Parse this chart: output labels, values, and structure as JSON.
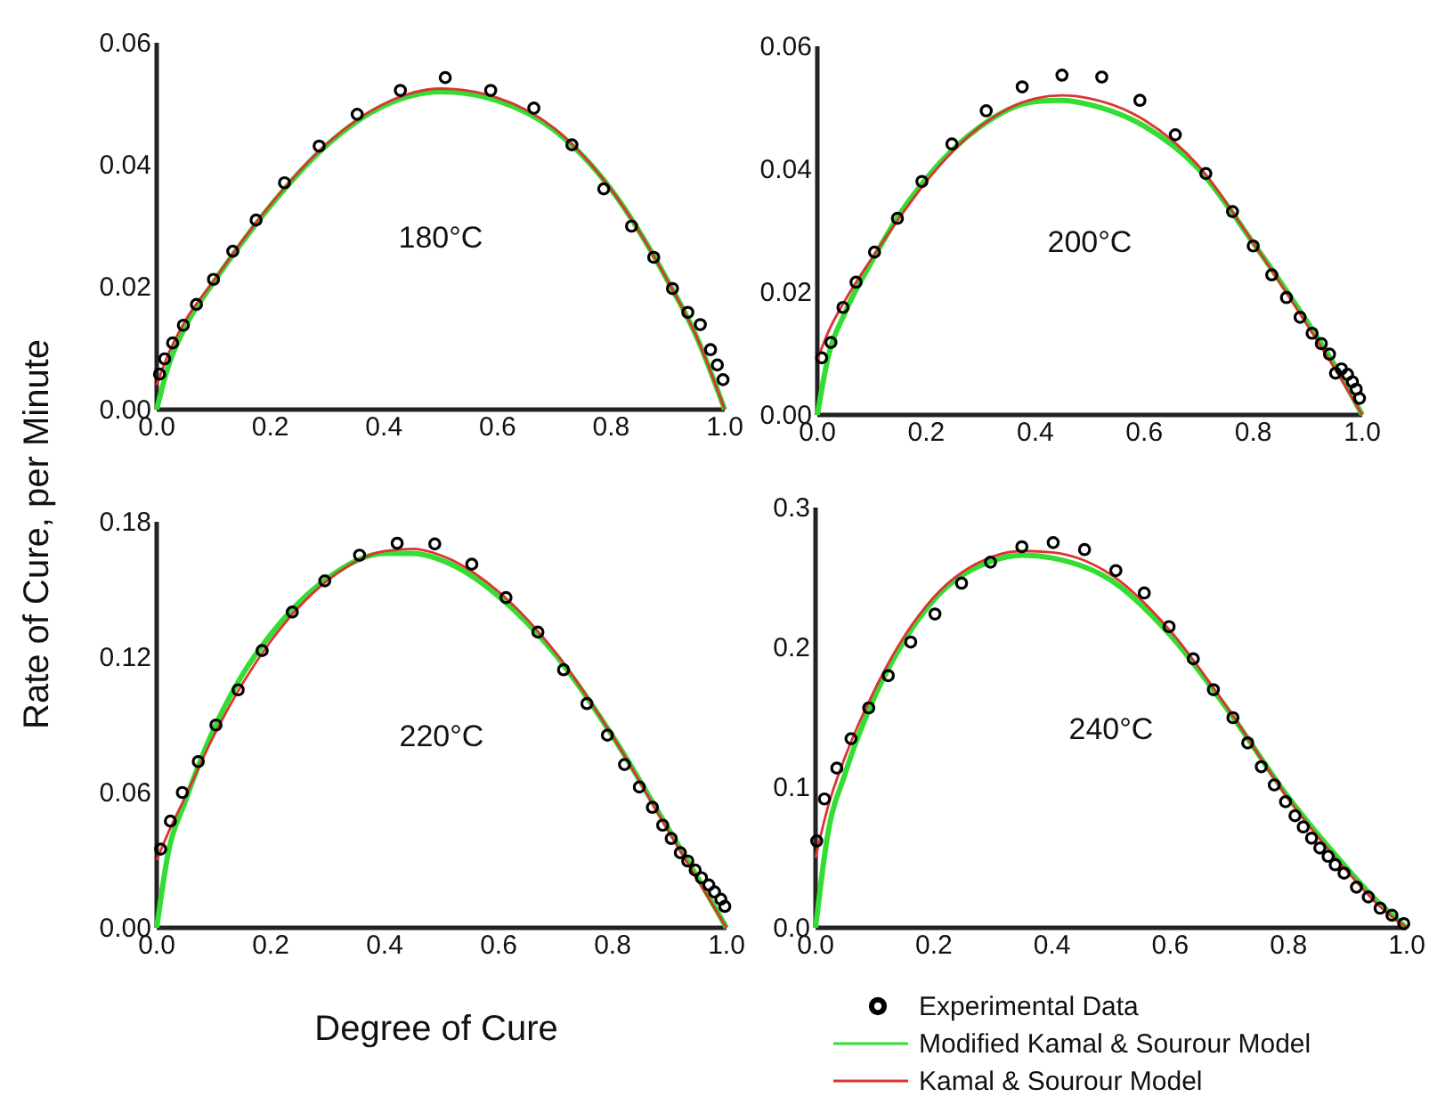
{
  "chart_data": [
    {
      "type": "scatter",
      "ylabel": "Rate of Cure, per Minute",
      "annotations": [
        "180°C"
      ],
      "xlim": [
        0,
        1
      ],
      "xticks": [
        {
          "value": 0,
          "label": "0.0"
        },
        {
          "value": 0.2,
          "label": "0.2"
        },
        {
          "value": 0.4,
          "label": "0.4"
        },
        {
          "value": 0.6,
          "label": "0.6"
        },
        {
          "value": 0.8,
          "label": "0.8"
        },
        {
          "value": 1,
          "label": "1.0"
        }
      ],
      "ylim": [
        0,
        0.06
      ],
      "yticks": [
        {
          "value": 0,
          "label": "0.00"
        },
        {
          "value": 0.02,
          "label": "0.02"
        },
        {
          "value": 0.04,
          "label": "0.04"
        },
        {
          "value": 0.06,
          "label": "0.06"
        }
      ],
      "grid": false,
      "series": [
        {
          "marker": "circle",
          "color": "#000000",
          "x": [
            0.005,
            0.014,
            0.028,
            0.047,
            0.07,
            0.1,
            0.134,
            0.175,
            0.225,
            0.286,
            0.353,
            0.429,
            0.508,
            0.588,
            0.664,
            0.731,
            0.787,
            0.836,
            0.875,
            0.908,
            0.935,
            0.957,
            0.975,
            0.987,
            0.997
          ],
          "values": [
            0.0058,
            0.0083,
            0.0109,
            0.0138,
            0.0172,
            0.0213,
            0.0259,
            0.031,
            0.0371,
            0.0431,
            0.0483,
            0.0522,
            0.0543,
            0.0522,
            0.0493,
            0.0433,
            0.0361,
            0.03,
            0.0249,
            0.0198,
            0.0159,
            0.0139,
            0.0098,
            0.0073,
            0.0049
          ]
        },
        {
          "type": "line",
          "marker": "none",
          "color": "#33dd33",
          "x": [
            0,
            0.02,
            0.05,
            0.1,
            0.15,
            0.2,
            0.3,
            0.4,
            0.5,
            0.6,
            0.7,
            0.8,
            0.9,
            0.95,
            1
          ],
          "values": [
            0,
            0.007,
            0.0135,
            0.0208,
            0.0273,
            0.0333,
            0.0433,
            0.0497,
            0.052,
            0.0505,
            0.0457,
            0.036,
            0.021,
            0.012,
            0
          ]
        },
        {
          "type": "line",
          "marker": "none",
          "color": "#dd3333",
          "x": [
            0,
            0.02,
            0.05,
            0.1,
            0.15,
            0.2,
            0.3,
            0.4,
            0.5,
            0.6,
            0.7,
            0.8,
            0.9,
            0.95,
            1
          ],
          "values": [
            0.004,
            0.009,
            0.0145,
            0.021,
            0.0275,
            0.0335,
            0.0435,
            0.05,
            0.0525,
            0.051,
            0.046,
            0.036,
            0.021,
            0.012,
            0
          ]
        }
      ]
    },
    {
      "type": "scatter",
      "annotations": [
        "200°C"
      ],
      "xlim": [
        0,
        1
      ],
      "xticks": [
        {
          "value": 0,
          "label": "0.0"
        },
        {
          "value": 0.2,
          "label": "0.2"
        },
        {
          "value": 0.4,
          "label": "0.4"
        },
        {
          "value": 0.6,
          "label": "0.6"
        },
        {
          "value": 0.8,
          "label": "0.8"
        },
        {
          "value": 1,
          "label": "1.0"
        }
      ],
      "ylim": [
        0,
        0.06
      ],
      "yticks": [
        {
          "value": 0,
          "label": "0.00"
        },
        {
          "value": 0.02,
          "label": "0.02"
        },
        {
          "value": 0.04,
          "label": "0.04"
        },
        {
          "value": 0.06,
          "label": "0.06"
        }
      ],
      "grid": false,
      "series": [
        {
          "marker": "circle",
          "color": "#000000",
          "x": [
            0.008,
            0.025,
            0.047,
            0.071,
            0.105,
            0.147,
            0.192,
            0.247,
            0.31,
            0.376,
            0.449,
            0.522,
            0.592,
            0.657,
            0.713,
            0.762,
            0.8,
            0.834,
            0.861,
            0.886,
            0.908,
            0.925,
            0.94,
            0.951,
            0.962,
            0.973,
            0.982,
            0.989,
            0.995
          ],
          "values": [
            0.0093,
            0.0118,
            0.0175,
            0.0216,
            0.0265,
            0.032,
            0.038,
            0.0441,
            0.0495,
            0.0534,
            0.0553,
            0.055,
            0.0512,
            0.0456,
            0.0393,
            0.0331,
            0.0275,
            0.0228,
            0.0191,
            0.0159,
            0.0133,
            0.0116,
            0.0099,
            0.0068,
            0.0075,
            0.0066,
            0.0054,
            0.0042,
            0.0027
          ]
        },
        {
          "type": "line",
          "marker": "none",
          "color": "#33dd33",
          "x": [
            0,
            0.02,
            0.05,
            0.1,
            0.15,
            0.2,
            0.3,
            0.4,
            0.45,
            0.5,
            0.6,
            0.7,
            0.8,
            0.9,
            0.95,
            1
          ],
          "values": [
            0,
            0.0095,
            0.0165,
            0.025,
            0.0325,
            0.0385,
            0.047,
            0.051,
            0.0512,
            0.0505,
            0.047,
            0.04,
            0.028,
            0.015,
            0.008,
            0
          ]
        },
        {
          "type": "line",
          "marker": "none",
          "color": "#dd3333",
          "x": [
            0,
            0.02,
            0.05,
            0.1,
            0.15,
            0.2,
            0.3,
            0.4,
            0.45,
            0.5,
            0.6,
            0.7,
            0.8,
            0.9,
            0.95,
            1
          ],
          "values": [
            0.009,
            0.0135,
            0.0185,
            0.0255,
            0.032,
            0.038,
            0.047,
            0.0515,
            0.052,
            0.0515,
            0.048,
            0.0405,
            0.028,
            0.0145,
            0.0075,
            0
          ]
        }
      ]
    },
    {
      "type": "scatter",
      "xlabel": "Degree of Cure",
      "annotations": [
        "220°C"
      ],
      "xlim": [
        0,
        1
      ],
      "xticks": [
        {
          "value": 0,
          "label": "0.0"
        },
        {
          "value": 0.2,
          "label": "0.2"
        },
        {
          "value": 0.4,
          "label": "0.4"
        },
        {
          "value": 0.6,
          "label": "0.6"
        },
        {
          "value": 0.8,
          "label": "0.8"
        },
        {
          "value": 1,
          "label": "1.0"
        }
      ],
      "ylim": [
        0,
        0.18
      ],
      "yticks": [
        {
          "value": 0,
          "label": "0.00"
        },
        {
          "value": 0.06,
          "label": "0.06"
        },
        {
          "value": 0.12,
          "label": "0.12"
        },
        {
          "value": 0.18,
          "label": "0.18"
        }
      ],
      "grid": false,
      "series": [
        {
          "marker": "circle",
          "color": "#000000",
          "x": [
            0.007,
            0.024,
            0.045,
            0.073,
            0.104,
            0.143,
            0.185,
            0.238,
            0.295,
            0.356,
            0.422,
            0.488,
            0.553,
            0.613,
            0.669,
            0.714,
            0.755,
            0.791,
            0.821,
            0.847,
            0.87,
            0.888,
            0.903,
            0.919,
            0.932,
            0.945,
            0.956,
            0.969,
            0.979,
            0.99,
            0.997
          ],
          "values": [
            0.0349,
            0.0473,
            0.06,
            0.0737,
            0.0899,
            0.1055,
            0.1229,
            0.14,
            0.1538,
            0.1652,
            0.1705,
            0.1702,
            0.1612,
            0.1464,
            0.1311,
            0.1144,
            0.0994,
            0.0854,
            0.0724,
            0.0624,
            0.0534,
            0.0455,
            0.0396,
            0.0333,
            0.0296,
            0.0256,
            0.0222,
            0.019,
            0.0159,
            0.0127,
            0.0095
          ]
        },
        {
          "type": "line",
          "marker": "none",
          "color": "#33dd33",
          "x": [
            0,
            0.02,
            0.05,
            0.1,
            0.15,
            0.2,
            0.3,
            0.4,
            0.45,
            0.5,
            0.6,
            0.7,
            0.8,
            0.9,
            0.95,
            1
          ],
          "values": [
            0,
            0.033,
            0.056,
            0.088,
            0.112,
            0.13,
            0.155,
            0.166,
            0.166,
            0.163,
            0.147,
            0.121,
            0.085,
            0.043,
            0.022,
            0
          ]
        },
        {
          "type": "line",
          "marker": "none",
          "color": "#dd3333",
          "x": [
            0,
            0.02,
            0.05,
            0.1,
            0.15,
            0.2,
            0.3,
            0.4,
            0.45,
            0.5,
            0.6,
            0.7,
            0.8,
            0.9,
            0.95,
            1
          ],
          "values": [
            0.03,
            0.042,
            0.058,
            0.085,
            0.108,
            0.127,
            0.154,
            0.167,
            0.168,
            0.165,
            0.149,
            0.122,
            0.085,
            0.042,
            0.021,
            0
          ]
        }
      ]
    },
    {
      "type": "scatter",
      "annotations": [
        "240°C"
      ],
      "legend": "bottom",
      "xlim": [
        0,
        1
      ],
      "xticks": [
        {
          "value": 0,
          "label": "0.0"
        },
        {
          "value": 0.2,
          "label": "0.2"
        },
        {
          "value": 0.4,
          "label": "0.4"
        },
        {
          "value": 0.6,
          "label": "0.6"
        },
        {
          "value": 0.8,
          "label": "0.8"
        },
        {
          "value": 1,
          "label": "1.0"
        }
      ],
      "ylim": [
        0,
        0.3
      ],
      "yticks": [
        {
          "value": 0,
          "label": "0.0"
        },
        0.1,
        0.2,
        0.3
      ],
      "grid": false,
      "series": [
        {
          "name": "Experimental Data",
          "marker": "circle",
          "color": "#000000",
          "x": [
            0.002,
            0.015,
            0.036,
            0.06,
            0.09,
            0.123,
            0.161,
            0.202,
            0.247,
            0.296,
            0.349,
            0.402,
            0.455,
            0.508,
            0.556,
            0.598,
            0.639,
            0.673,
            0.706,
            0.731,
            0.754,
            0.776,
            0.795,
            0.811,
            0.825,
            0.839,
            0.853,
            0.867,
            0.879,
            0.894,
            0.915,
            0.935,
            0.955,
            0.975,
            0.995
          ],
          "values": [
            0.062,
            0.092,
            0.114,
            0.135,
            0.157,
            0.18,
            0.204,
            0.224,
            0.246,
            0.261,
            0.272,
            0.275,
            0.27,
            0.255,
            0.239,
            0.215,
            0.192,
            0.17,
            0.15,
            0.132,
            0.115,
            0.102,
            0.09,
            0.08,
            0.072,
            0.064,
            0.057,
            0.051,
            0.045,
            0.039,
            0.029,
            0.022,
            0.014,
            0.009,
            0.003
          ]
        },
        {
          "type": "line",
          "name": "Modified Kamal & Sourour Model",
          "marker": "none",
          "color": "#33dd33",
          "x": [
            0,
            0.02,
            0.05,
            0.1,
            0.15,
            0.2,
            0.3,
            0.35,
            0.4,
            0.5,
            0.6,
            0.7,
            0.8,
            0.9,
            0.95,
            1
          ],
          "values": [
            0,
            0.065,
            0.11,
            0.165,
            0.205,
            0.234,
            0.262,
            0.266,
            0.264,
            0.248,
            0.209,
            0.154,
            0.093,
            0.042,
            0.019,
            0
          ]
        },
        {
          "type": "line",
          "name": "Kamal & Sourour Model",
          "marker": "none",
          "color": "#dd3333",
          "x": [
            0,
            0.02,
            0.05,
            0.1,
            0.15,
            0.2,
            0.3,
            0.35,
            0.4,
            0.5,
            0.6,
            0.7,
            0.8,
            0.9,
            0.95,
            1
          ],
          "values": [
            0.05,
            0.085,
            0.122,
            0.17,
            0.208,
            0.236,
            0.265,
            0.269,
            0.268,
            0.252,
            0.212,
            0.155,
            0.092,
            0.04,
            0.017,
            0
          ]
        }
      ]
    }
  ]
}
